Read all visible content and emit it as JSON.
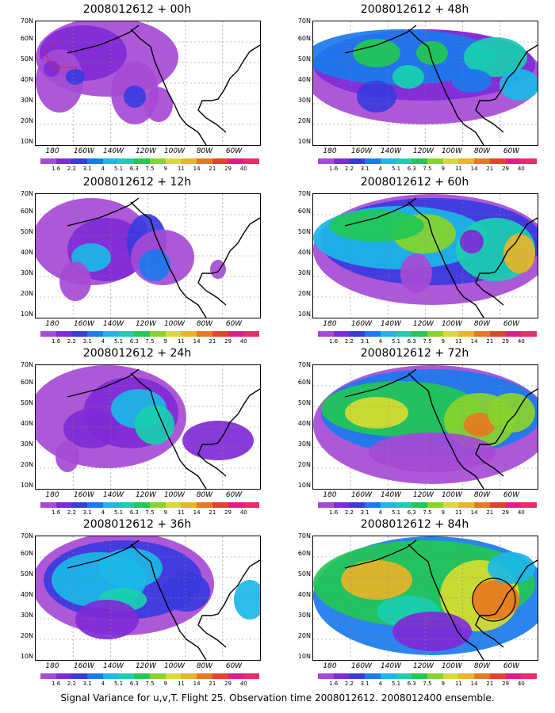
{
  "panels": [
    {
      "title": "2008012612 + 00h"
    },
    {
      "title": "2008012612 + 48h"
    },
    {
      "title": "2008012612 + 12h"
    },
    {
      "title": "2008012612 + 60h"
    },
    {
      "title": "2008012612 + 24h"
    },
    {
      "title": "2008012612 + 72h"
    },
    {
      "title": "2008012612 + 36h"
    },
    {
      "title": "2008012612 + 84h"
    }
  ],
  "lat_labels": [
    "70N",
    "60N",
    "50N",
    "40N",
    "30N",
    "20N",
    "10N"
  ],
  "lon_labels": [
    "180",
    "160W",
    "140W",
    "120W",
    "100W",
    "80W",
    "60W"
  ],
  "colorbar": {
    "labels": [
      "1.6",
      "2.2",
      "3.1",
      "4",
      "5.1",
      "6.3",
      "7.5",
      "9",
      "11",
      "14",
      "21",
      "29",
      "40"
    ],
    "colors": [
      "#a64ad6",
      "#7f2ad6",
      "#3a3ae0",
      "#1a7aee",
      "#1ab8e8",
      "#18d0b0",
      "#21c852",
      "#88d42a",
      "#d8dc30",
      "#e8b428",
      "#e87820",
      "#e84030",
      "#e81a8a",
      "#ee2a6a"
    ]
  },
  "footer": "Signal Variance for u,v,T. Flight 25. Observation time 2008012612. 2008012400 ensemble."
}
